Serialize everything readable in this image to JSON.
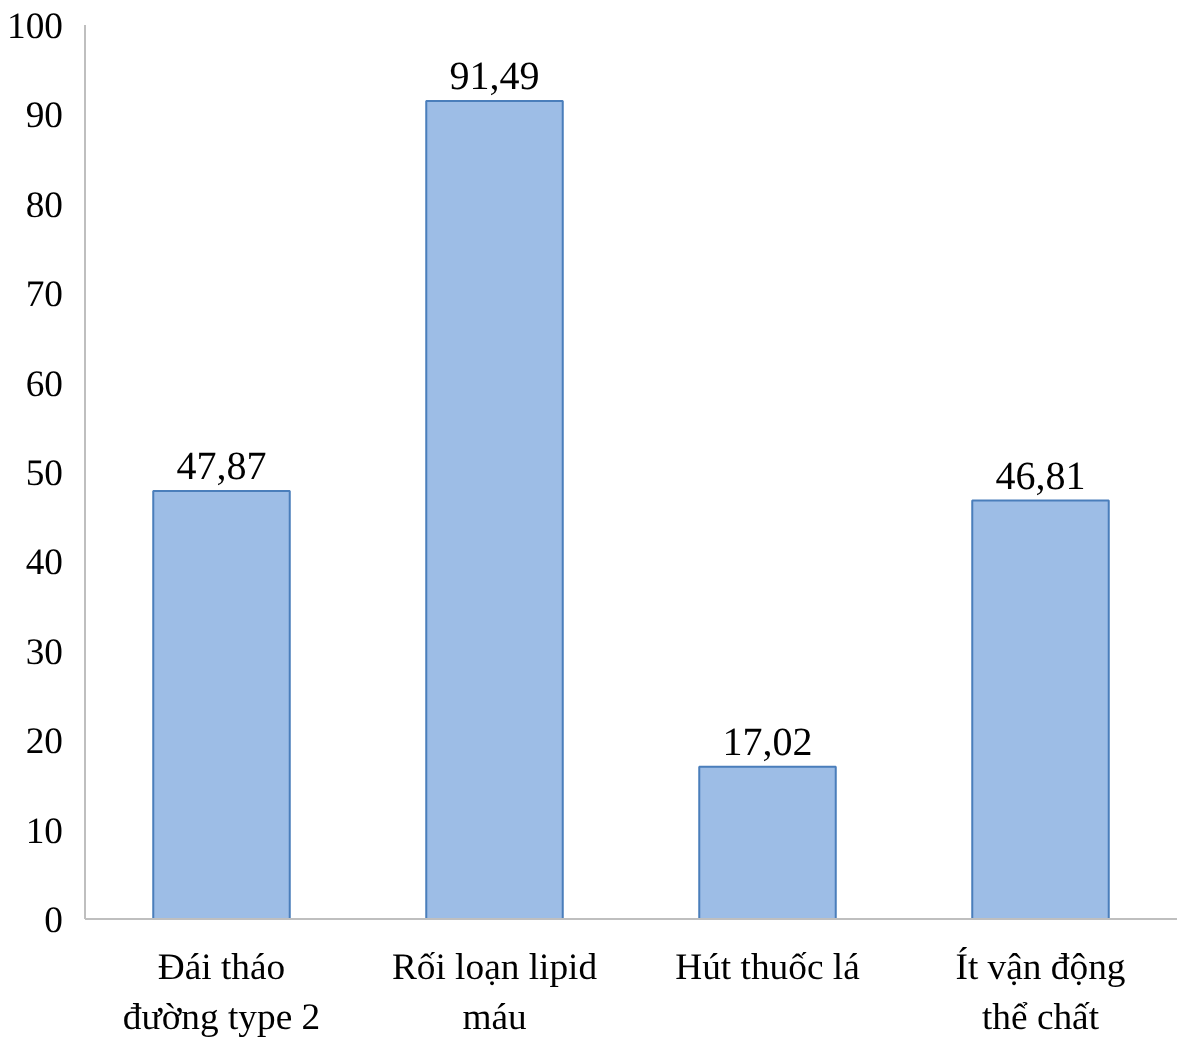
{
  "chart_data": {
    "type": "bar",
    "categories": [
      "Đái tháo\nđường type 2",
      "Rối loạn lipid\nmáu",
      "Hút thuốc lá",
      "Ít vận động\nthể chất"
    ],
    "values": [
      47.87,
      91.49,
      17.02,
      46.81
    ],
    "value_labels": [
      "47,87",
      "91,49",
      "17,02",
      "46,81"
    ],
    "color": "#9dbde6",
    "ylim": [
      0,
      100
    ],
    "yticks": [
      0,
      10,
      20,
      30,
      40,
      50,
      60,
      70,
      80,
      90,
      100
    ],
    "grid": false
  }
}
